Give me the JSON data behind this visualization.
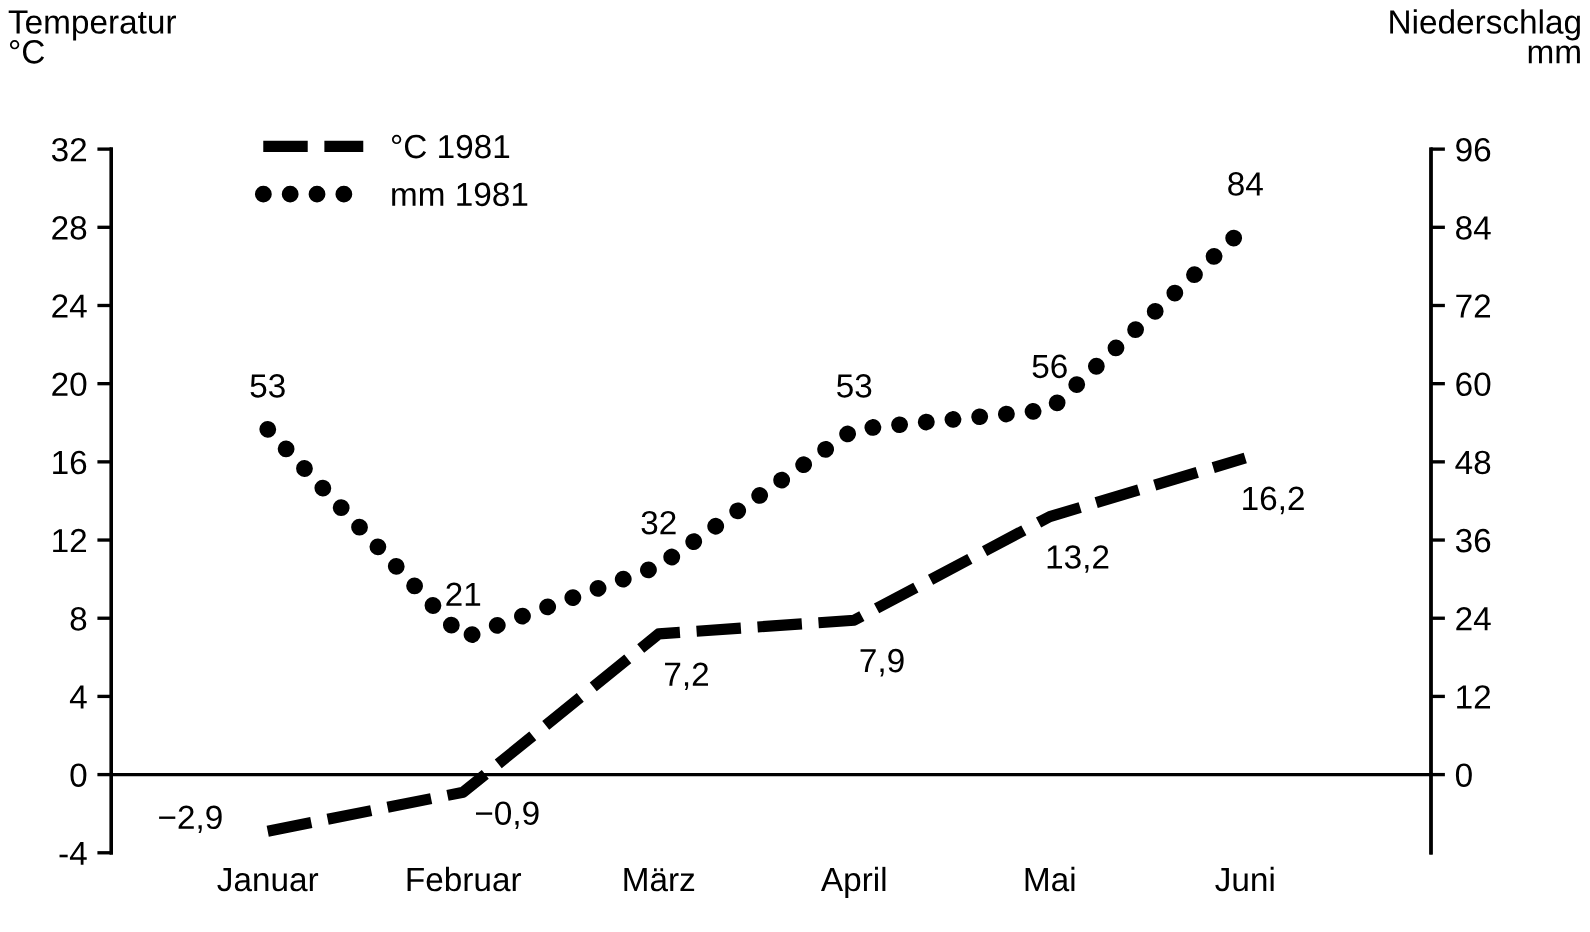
{
  "chart_data": {
    "type": "line",
    "categories": [
      "Januar",
      "Februar",
      "März",
      "April",
      "Mai",
      "Juni"
    ],
    "ylabel": "Temperatur\n°C",
    "y2label": "Niederschlag\nmm",
    "ylim": [
      -4,
      32
    ],
    "yticks": [
      -4,
      0,
      4,
      8,
      12,
      16,
      20,
      24,
      28,
      32
    ],
    "y2lim": [
      -12,
      96
    ],
    "y2ticks": [
      0,
      12,
      24,
      36,
      48,
      60,
      72,
      84,
      96
    ],
    "series": [
      {
        "name": "°C 1981",
        "color": "#000000",
        "line_style": "dashed",
        "values": [
          -2.9,
          -0.9,
          7.2,
          7.9,
          13.2,
          16.2
        ],
        "value_labels": [
          "−2,9",
          "−0,9",
          "7,2",
          "7,9",
          "13,2",
          "16,2"
        ]
      },
      {
        "name": "mm 1981",
        "color": "#000000",
        "line_style": "dotted",
        "axis": "y2",
        "values": [
          53,
          21,
          32,
          53,
          56,
          84
        ],
        "value_labels": [
          "53",
          "21",
          "32",
          "53",
          "56",
          "84"
        ]
      }
    ],
    "ref_lines": [
      {
        "axis": "y",
        "value": 0,
        "color": "#000000",
        "line_style": "solid"
      }
    ],
    "legend": "top left",
    "grid": false,
    "marker": "none"
  }
}
